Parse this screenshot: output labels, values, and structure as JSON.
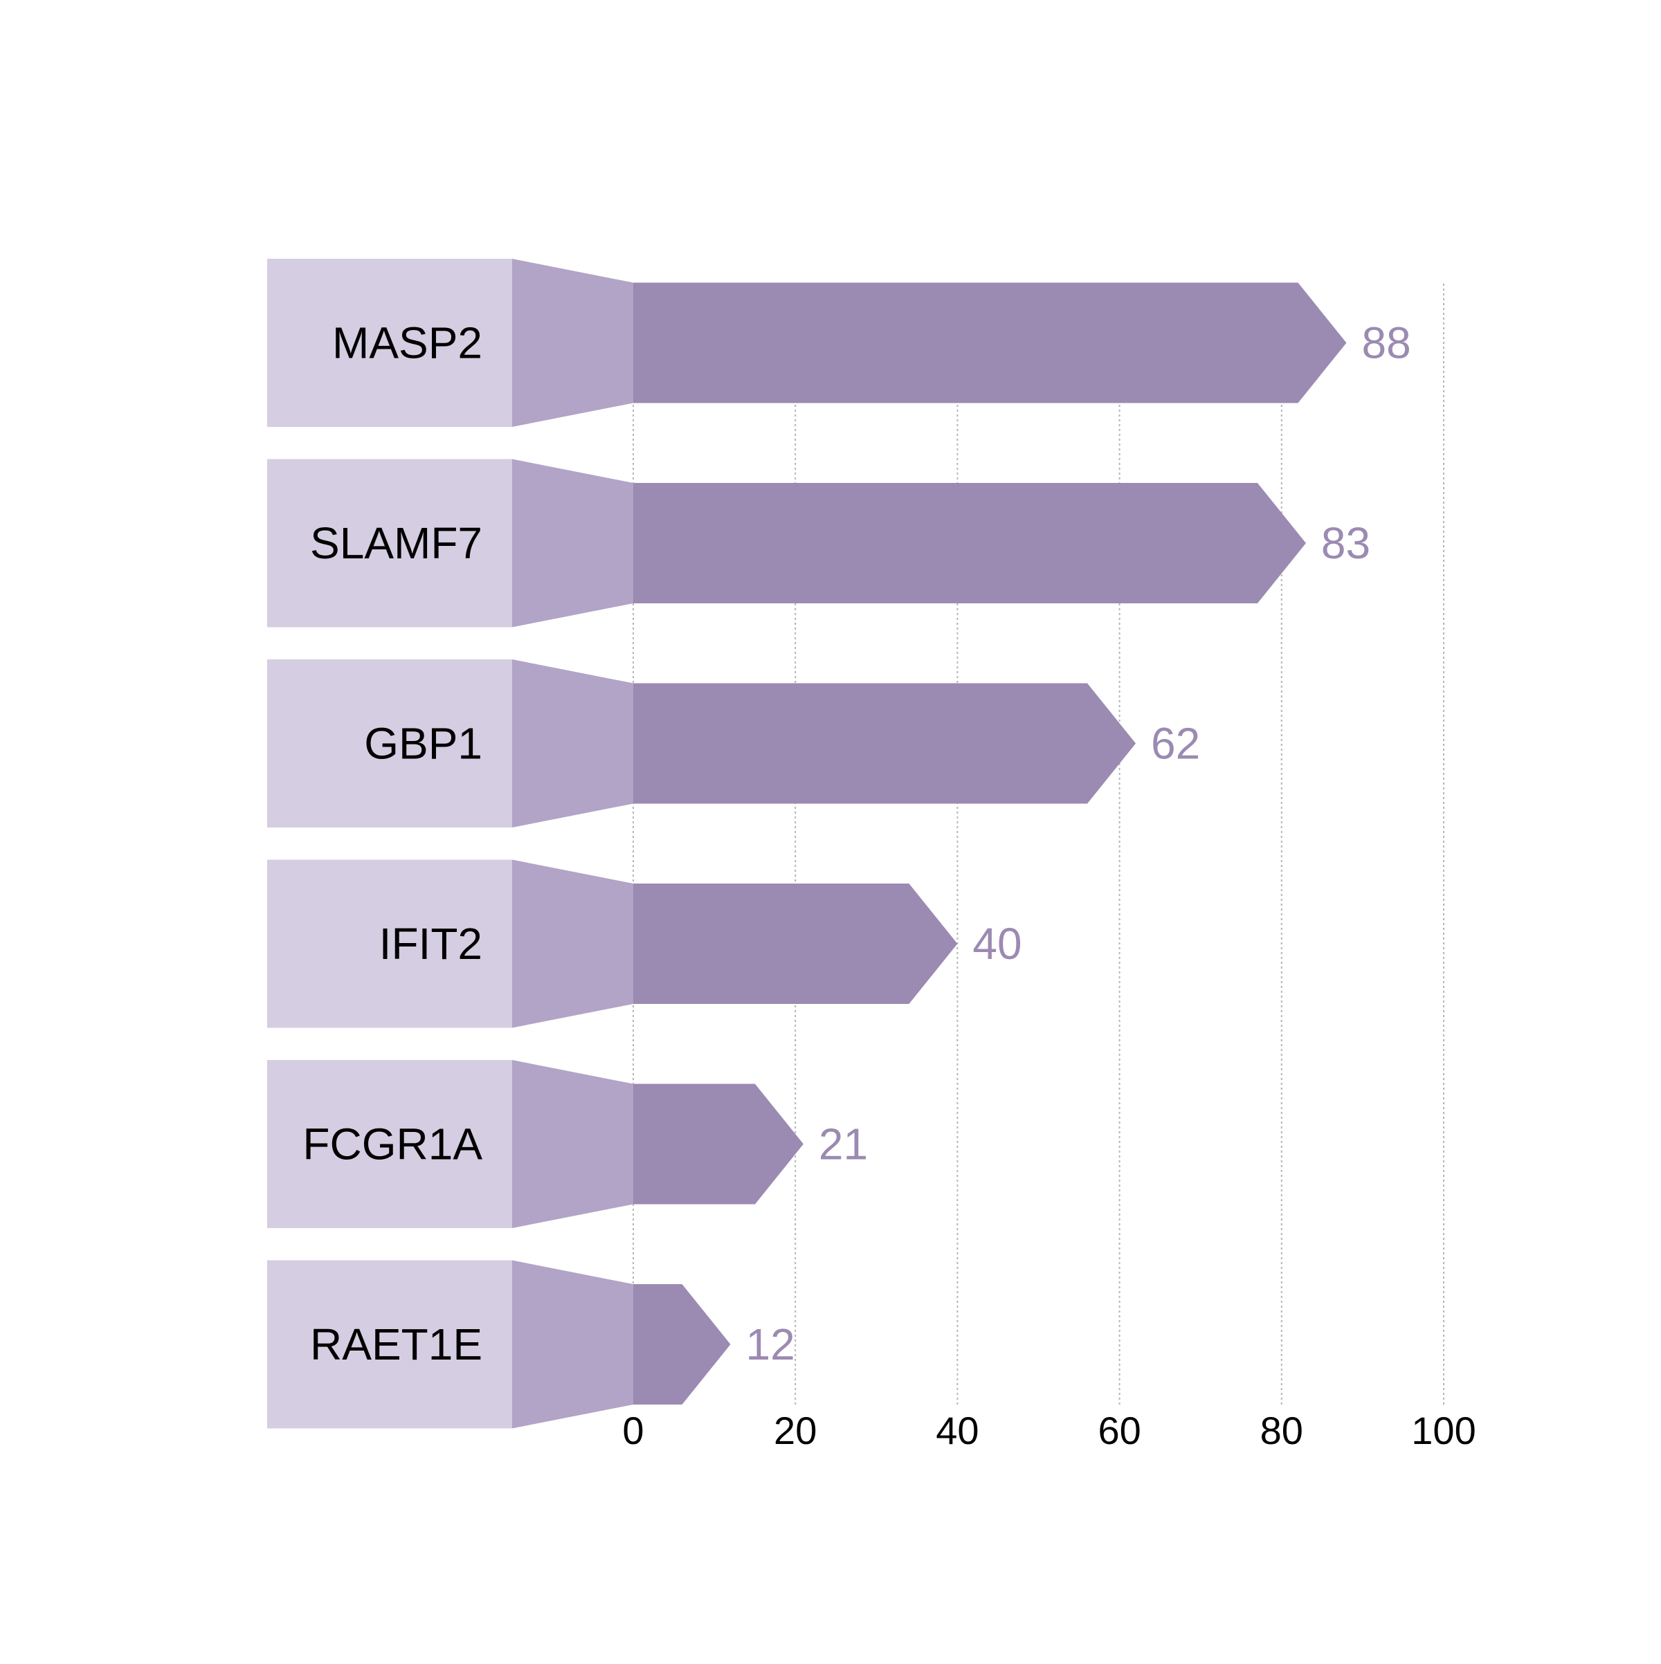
{
  "chart_data": {
    "type": "bar",
    "orientation": "horizontal",
    "categories": [
      "MASP2",
      "SLAMF7",
      "GBP1",
      "IFIT2",
      "FCGR1A",
      "RAET1E"
    ],
    "values": [
      88,
      83,
      62,
      40,
      21,
      12
    ],
    "title": "",
    "xlabel": "",
    "ylabel": "",
    "xlim": [
      0,
      100
    ],
    "x_ticks": [
      "0",
      "20",
      "40",
      "60",
      "80",
      "100"
    ],
    "grid": "vertical dotted",
    "legend": "none",
    "data_labels": [
      "88",
      "83",
      "62",
      "40",
      "21",
      "12"
    ],
    "colors": {
      "label_box": "#d5cde1",
      "connector": "#b1a4c7",
      "bar": "#9b8ab1",
      "value_text": "#9b8ab1",
      "label_text": "#000000",
      "tick_text": "#000000",
      "grid": "#b4b4b4"
    }
  }
}
